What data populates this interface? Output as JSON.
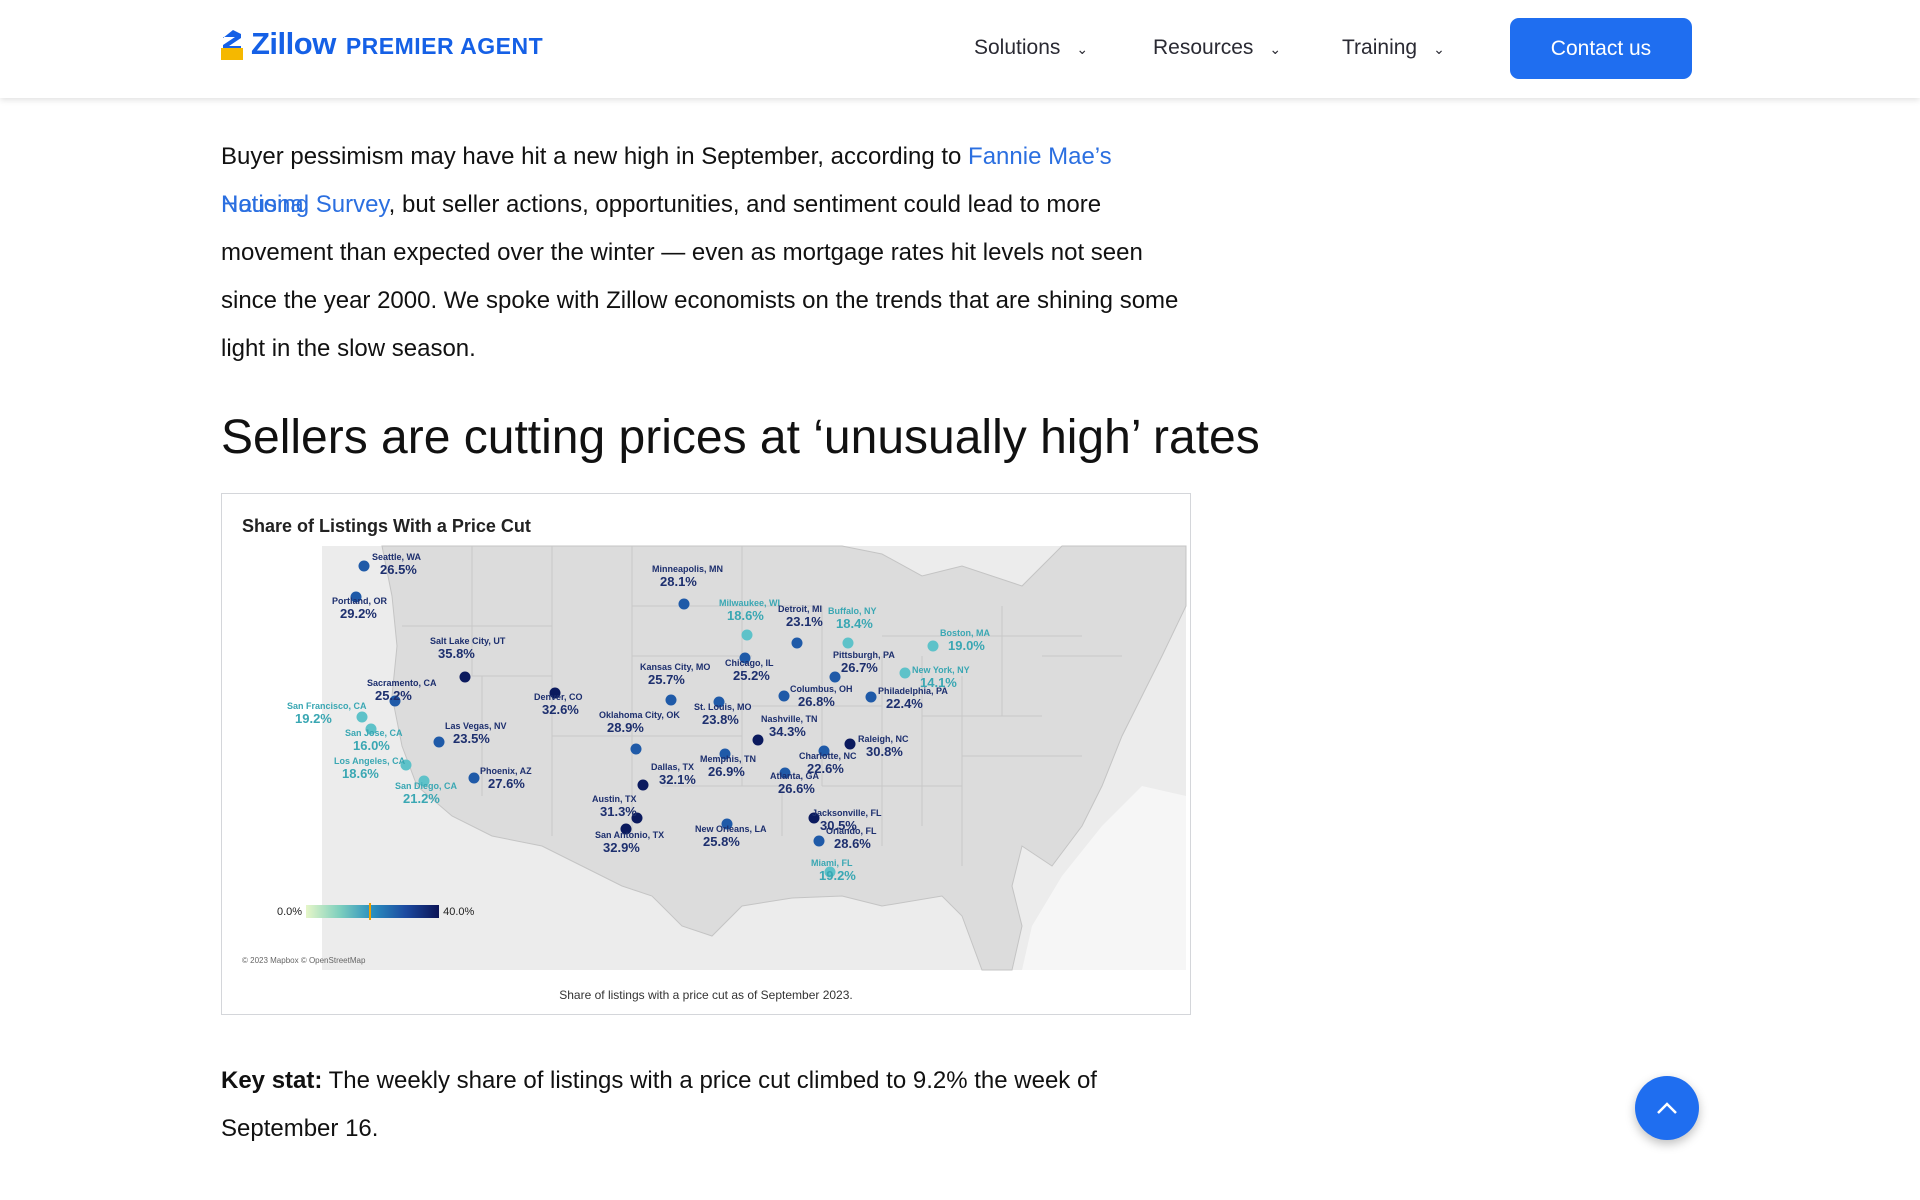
{
  "header": {
    "logo_word": "Zillow",
    "logo_sub": "PREMIER AGENT",
    "nav": [
      {
        "label": "Solutions"
      },
      {
        "label": "Resources"
      },
      {
        "label": "Training"
      }
    ],
    "contact_label": "Contact us"
  },
  "article": {
    "intro_lines": [
      {
        "before": "Buyer pessimism may have hit a new high in September, according to ",
        "link": "Fannie Mae’s National"
      },
      {
        "link": "Housing Survey",
        "after": ", but seller actions, opportunities, and sentiment could lead to more"
      },
      {
        "text": "movement than expected over the winter — even as mortgage rates hit levels not seen"
      },
      {
        "text": "since the year 2000. We spoke with Zillow economists on the trends that are shining some"
      },
      {
        "text": "light in the slow season."
      }
    ],
    "heading": "Sellers are cutting prices at ‘unusually high’ rates",
    "keystat_label": "Key stat:",
    "keystat_line1": " The weekly share of listings with a price cut climbed to 9.2% the week of",
    "keystat_line2": "September 16."
  },
  "figure": {
    "title": "Share of Listings With a Price Cut",
    "caption": "Share of listings with a price cut as of September 2023.",
    "attribution": "© 2023 Mapbox © OpenStreetMap",
    "legend_min": "0.0%",
    "legend_max": "40.0%",
    "colors": {
      "low": "#5ec2c9",
      "mid": "#1f5aa8",
      "high": "#0b1a5e"
    },
    "cities": [
      {
        "name": "Seattle, WA",
        "value": "26.5%"
      },
      {
        "name": "Portland, OR",
        "value": "29.2%"
      },
      {
        "name": "Salt Lake City, UT",
        "value": "35.8%"
      },
      {
        "name": "Sacramento, CA",
        "value": "25.2%"
      },
      {
        "name": "San Francisco, CA",
        "value": "19.2%"
      },
      {
        "name": "San Jose, CA",
        "value": "16.0%"
      },
      {
        "name": "Los Angeles, CA",
        "value": "18.6%"
      },
      {
        "name": "San Diego, CA",
        "value": "21.2%"
      },
      {
        "name": "Las Vegas, NV",
        "value": "23.5%"
      },
      {
        "name": "Phoenix, AZ",
        "value": "27.6%"
      },
      {
        "name": "Denver, CO",
        "value": "32.6%"
      },
      {
        "name": "Minneapolis, MN",
        "value": "28.1%"
      },
      {
        "name": "Kansas City, MO",
        "value": "25.7%"
      },
      {
        "name": "Oklahoma City, OK",
        "value": "28.9%"
      },
      {
        "name": "Dallas, TX",
        "value": "32.1%"
      },
      {
        "name": "Austin, TX",
        "value": "31.3%"
      },
      {
        "name": "San Antonio, TX",
        "value": "32.9%"
      },
      {
        "name": "Milwaukee, WI",
        "value": "18.6%"
      },
      {
        "name": "Chicago, IL",
        "value": "25.2%"
      },
      {
        "name": "St. Louis, MO",
        "value": "23.8%"
      },
      {
        "name": "Memphis, TN",
        "value": "26.9%"
      },
      {
        "name": "New Orleans, LA",
        "value": "25.8%"
      },
      {
        "name": "Nashville, TN",
        "value": "34.3%"
      },
      {
        "name": "Detroit, MI",
        "value": "23.1%"
      },
      {
        "name": "Columbus, OH",
        "value": "26.8%"
      },
      {
        "name": "Atlanta, GA",
        "value": "26.6%"
      },
      {
        "name": "Buffalo, NY",
        "value": "18.4%"
      },
      {
        "name": "Pittsburgh, PA",
        "value": "26.7%"
      },
      {
        "name": "Boston, MA",
        "value": "19.0%"
      },
      {
        "name": "New York, NY",
        "value": "14.1%"
      },
      {
        "name": "Philadelphia, PA",
        "value": "22.4%"
      },
      {
        "name": "Raleigh, NC",
        "value": "30.8%"
      },
      {
        "name": "Charlotte, NC",
        "value": "22.6%"
      },
      {
        "name": "Jacksonville, FL",
        "value": "30.5%"
      },
      {
        "name": "Orlando, FL",
        "value": "28.6%"
      },
      {
        "name": "Miami, FL",
        "value": "19.2%"
      }
    ]
  }
}
